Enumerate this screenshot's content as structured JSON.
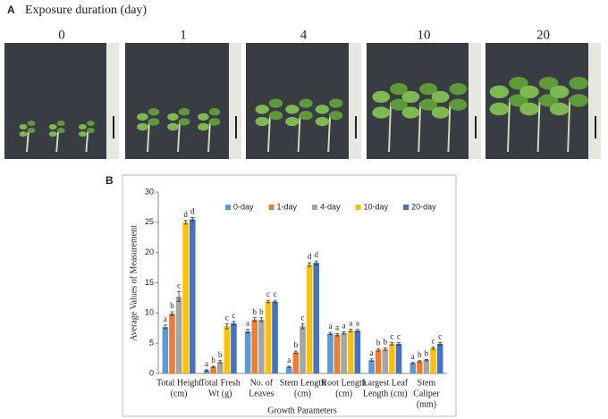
{
  "panel_a": {
    "label": "A",
    "title": "Exposure duration (day)",
    "days": [
      "0",
      "1",
      "4",
      "10",
      "20"
    ]
  },
  "panel_b": {
    "label": "B"
  },
  "chart_data": {
    "type": "bar",
    "xlabel": "Growth Parameters",
    "ylabel": "Average Values of Measurement",
    "categories": [
      [
        "Total Height",
        "(cm)"
      ],
      [
        "Total Fresh",
        "Wt (g)"
      ],
      [
        "No. of",
        "Leaves"
      ],
      [
        "Stem Length",
        "(cm)"
      ],
      [
        "Root Length",
        "(cm)"
      ],
      [
        "Largest Leaf",
        "Length (cm)"
      ],
      [
        "Stem",
        "Caliper",
        "(mm)"
      ]
    ],
    "series": [
      {
        "name": "0-day",
        "color": "#5b9bd5",
        "values": [
          7.7,
          0.5,
          7.0,
          1.1,
          6.6,
          2.2,
          1.7
        ],
        "errors": [
          0.3,
          0.1,
          0.3,
          0.1,
          0.2,
          0.2,
          0.1
        ],
        "letters": [
          "a",
          "a",
          "a",
          "a",
          "a",
          "a",
          "a"
        ]
      },
      {
        "name": "1-day",
        "color": "#ed7d31",
        "values": [
          9.9,
          1.1,
          8.9,
          3.5,
          6.4,
          3.9,
          2.0
        ],
        "errors": [
          0.3,
          0.1,
          0.3,
          0.2,
          0.2,
          0.2,
          0.1
        ],
        "letters": [
          "b",
          "b",
          "b",
          "b",
          "a",
          "b",
          "b"
        ]
      },
      {
        "name": "4-day",
        "color": "#a5a5a5",
        "values": [
          12.7,
          1.9,
          8.9,
          7.8,
          6.7,
          4.0,
          2.2
        ],
        "errors": [
          0.8,
          0.2,
          0.3,
          0.4,
          0.2,
          0.2,
          0.1
        ],
        "letters": [
          "c",
          "b",
          "b",
          "c",
          "a",
          "b",
          "b"
        ]
      },
      {
        "name": "10-day",
        "color": "#ffc000",
        "values": [
          25.0,
          7.8,
          11.9,
          18.0,
          7.1,
          4.9,
          4.2
        ],
        "errors": [
          0.3,
          0.4,
          0.2,
          0.3,
          0.2,
          0.2,
          0.2
        ],
        "letters": [
          "d",
          "c",
          "c",
          "d",
          "a",
          "c",
          "c"
        ]
      },
      {
        "name": "20-day",
        "color": "#4472c4",
        "values": [
          25.5,
          8.3,
          11.9,
          18.3,
          7.1,
          4.9,
          4.9
        ],
        "errors": [
          0.3,
          0.3,
          0.2,
          0.3,
          0.2,
          0.2,
          0.2
        ],
        "letters": [
          "d",
          "c",
          "c",
          "d",
          "a",
          "c",
          "c"
        ]
      }
    ],
    "ylim": [
      0,
      30
    ],
    "yticks": [
      0,
      5,
      10,
      15,
      20,
      25,
      30
    ],
    "grid": false,
    "legend": "top"
  }
}
